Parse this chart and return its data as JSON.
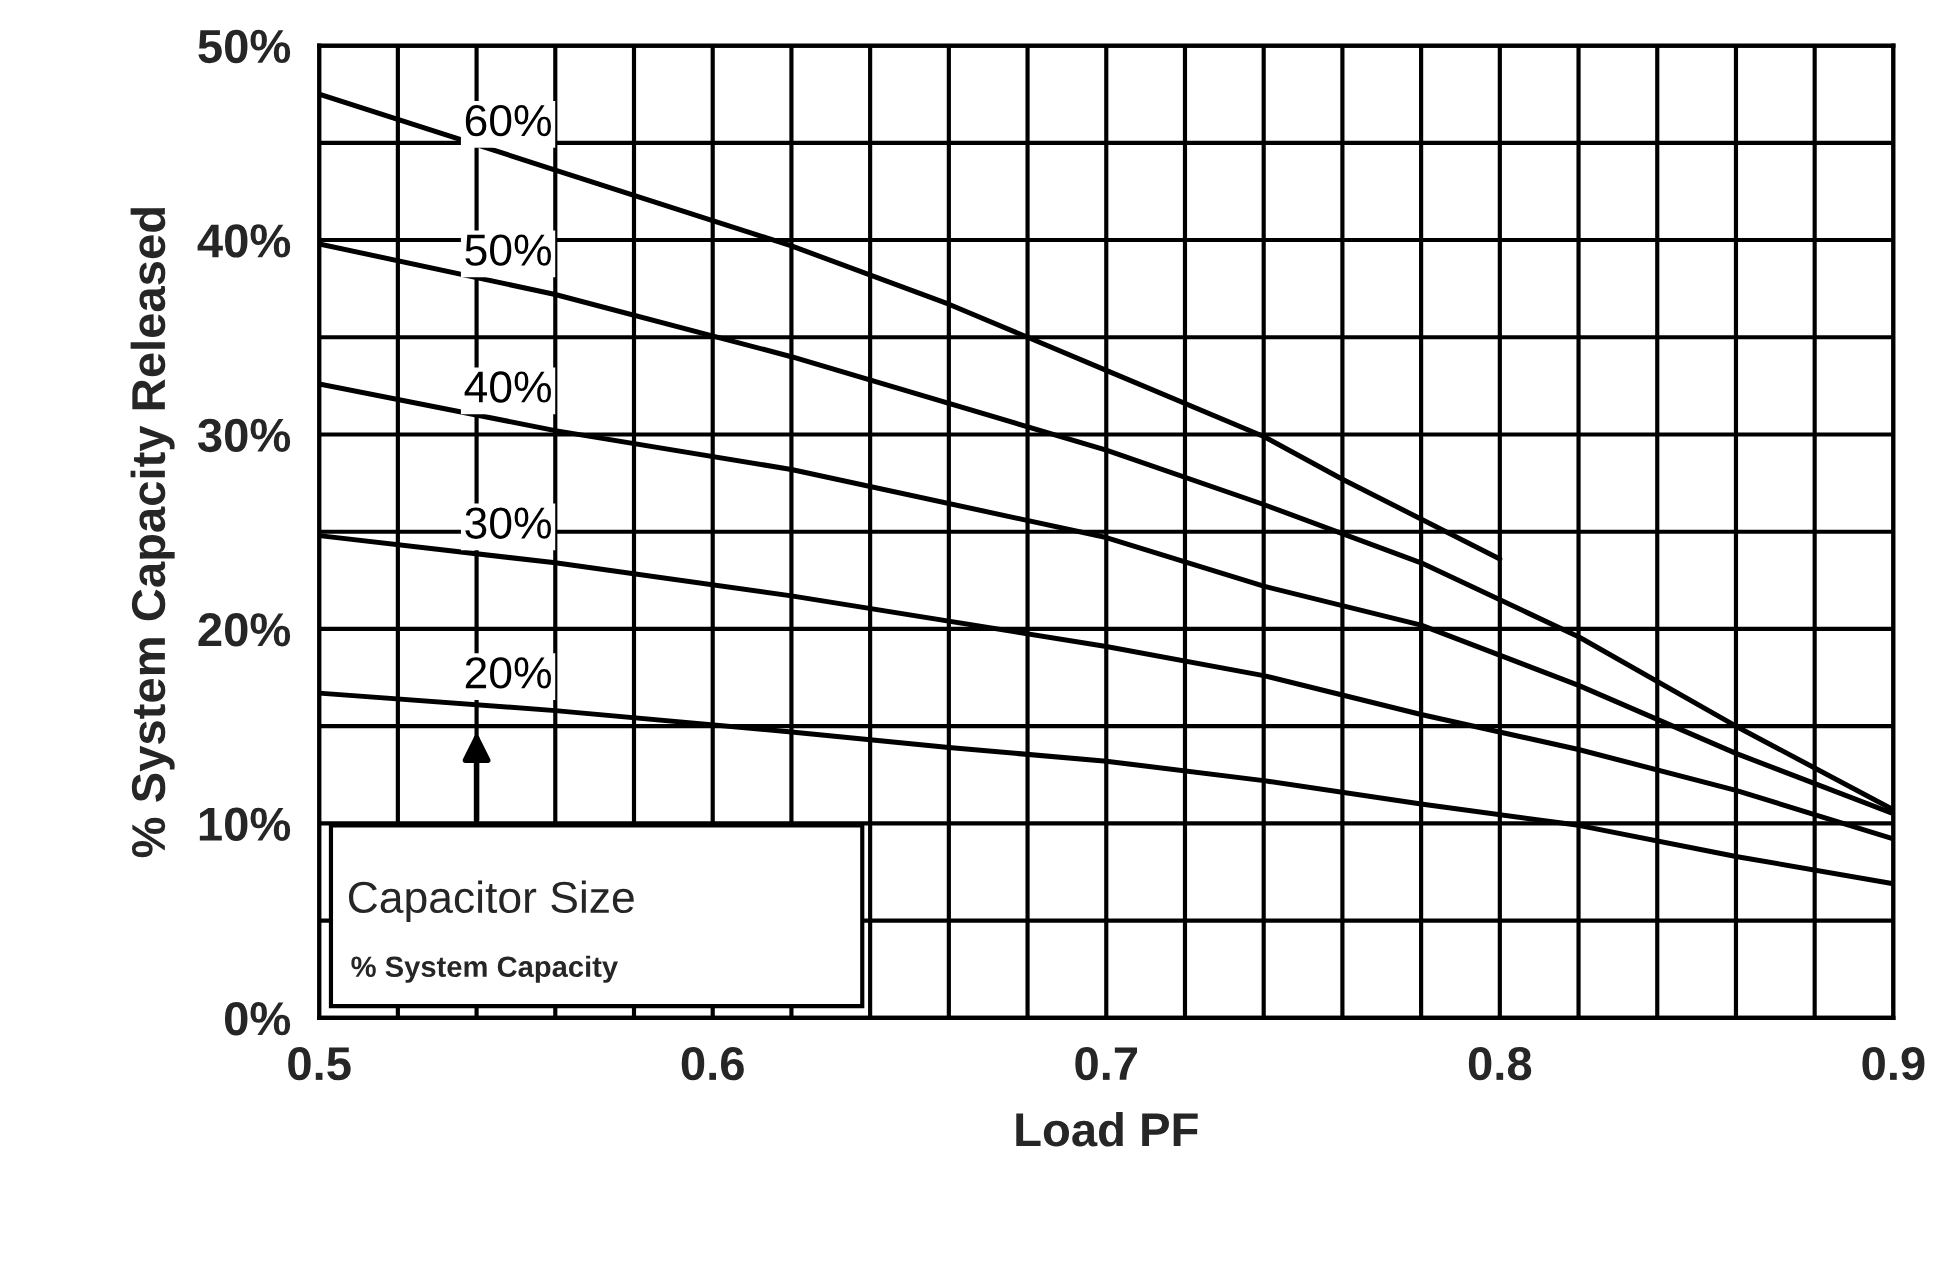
{
  "chart_data": {
    "type": "line",
    "xlabel": "Load PF",
    "ylabel": "% System Capacity Released",
    "annotations": [
      "Capacitor Size",
      "% System Capacity"
    ],
    "series": [
      {
        "name": "60%",
        "color": "#000000",
        "x": [
          0.5,
          0.56,
          0.62,
          0.66,
          0.7,
          0.74,
          0.76,
          0.8
        ],
        "values": [
          47.5,
          43.6,
          39.7,
          36.7,
          33.3,
          29.9,
          27.7,
          23.6
        ]
      },
      {
        "name": "50%",
        "color": "#000000",
        "x": [
          0.5,
          0.56,
          0.62,
          0.7,
          0.74,
          0.78,
          0.82,
          0.86,
          0.9
        ],
        "values": [
          39.8,
          37.2,
          34.0,
          29.2,
          26.4,
          23.4,
          19.6,
          15.0,
          10.7
        ]
      },
      {
        "name": "40%",
        "color": "#000000",
        "x": [
          0.5,
          0.56,
          0.62,
          0.7,
          0.74,
          0.78,
          0.82,
          0.86,
          0.9
        ],
        "values": [
          32.6,
          30.2,
          28.2,
          24.7,
          22.2,
          20.2,
          17.1,
          13.6,
          10.5
        ]
      },
      {
        "name": "30%",
        "color": "#000000",
        "x": [
          0.5,
          0.56,
          0.62,
          0.7,
          0.74,
          0.78,
          0.82,
          0.86,
          0.9
        ],
        "values": [
          24.8,
          23.4,
          21.7,
          19.1,
          17.6,
          15.6,
          13.8,
          11.7,
          9.2
        ]
      },
      {
        "name": "20%",
        "color": "#000000",
        "x": [
          0.5,
          0.56,
          0.62,
          0.66,
          0.7,
          0.74,
          0.78,
          0.82,
          0.86,
          0.9
        ],
        "values": [
          16.7,
          15.8,
          14.7,
          13.9,
          13.2,
          12.2,
          11.0,
          9.9,
          8.3,
          6.9
        ]
      }
    ],
    "xlim": [
      0.5,
      0.9
    ],
    "ylim": [
      0,
      50
    ],
    "xticks": [
      0.5,
      {
        "value": 0.52,
        "label": null
      },
      {
        "value": 0.54,
        "label": null
      },
      {
        "value": 0.56,
        "label": null
      },
      {
        "value": 0.58,
        "label": null
      },
      0.6,
      {
        "value": 0.62,
        "label": null
      },
      {
        "value": 0.64,
        "label": null
      },
      {
        "value": 0.66,
        "label": null
      },
      {
        "value": 0.68,
        "label": null
      },
      0.7,
      {
        "value": 0.72,
        "label": null
      },
      {
        "value": 0.74,
        "label": null
      },
      {
        "value": 0.76,
        "label": null
      },
      {
        "value": 0.78,
        "label": null
      },
      0.8,
      {
        "value": 0.82,
        "label": null
      },
      {
        "value": 0.84,
        "label": null
      },
      {
        "value": 0.86,
        "label": null
      },
      {
        "value": 0.88,
        "label": null
      },
      0.9
    ],
    "yticks": [
      {
        "value": 0,
        "label": "0%"
      },
      {
        "value": 5,
        "label": null
      },
      {
        "value": 10,
        "label": "10%"
      },
      {
        "value": 15,
        "label": null
      },
      {
        "value": 20,
        "label": "20%"
      },
      {
        "value": 25,
        "label": null
      },
      {
        "value": 30,
        "label": "30%"
      },
      {
        "value": 35,
        "label": null
      },
      {
        "value": 40,
        "label": "40%"
      },
      {
        "value": 45,
        "label": null
      },
      {
        "value": 50,
        "label": "50%"
      }
    ],
    "grid": true,
    "legend": false,
    "marker": "none",
    "line_style": "solid"
  }
}
